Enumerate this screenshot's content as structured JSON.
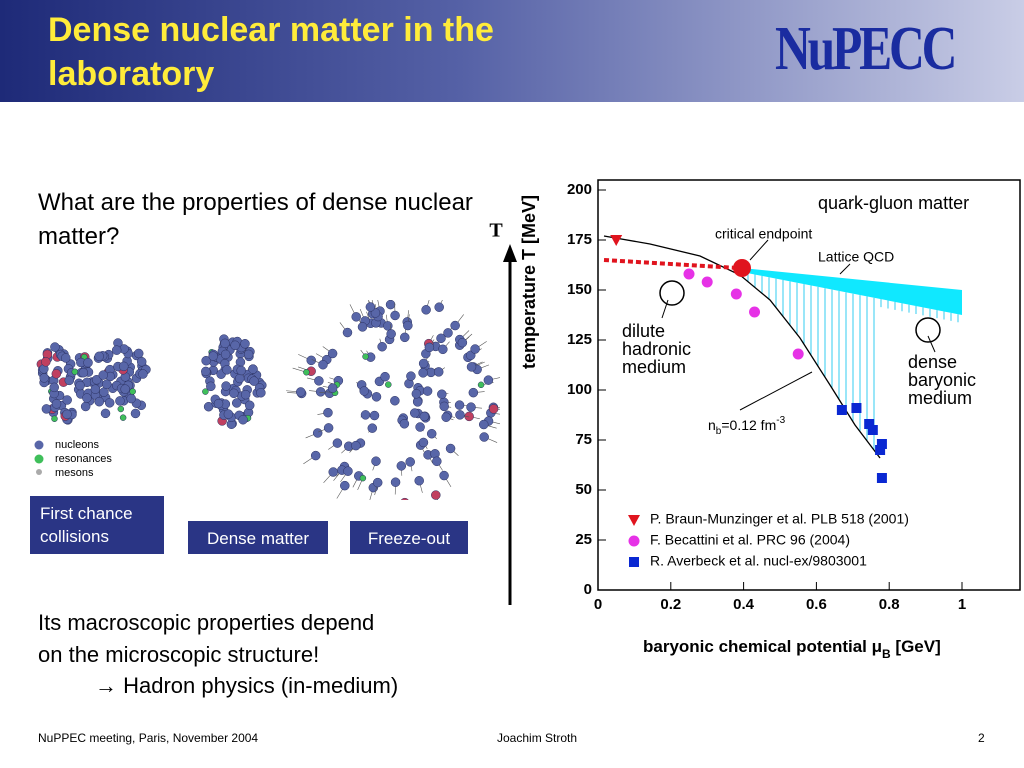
{
  "header": {
    "title": "Dense nuclear matter in the laboratory",
    "logo": "NuPECC"
  },
  "question": "What are the properties of dense nuclear matter?",
  "legend": [
    "nucleons",
    "resonances",
    "mesons"
  ],
  "stages": [
    "First chance collisions",
    "Dense matter",
    "Freeze-out"
  ],
  "t_axis": "T",
  "body": [
    "Its macroscopic properties depend",
    "on the microscopic structure!",
    "→ Hadron physics (in-medium)"
  ],
  "footer": {
    "left": "NuPPEC meeting, Paris, November  2004",
    "center": "Joachim Stroth",
    "right": "2"
  },
  "chart_data": {
    "type": "scatter",
    "y_label": "temperature T [MeV]",
    "x_label": [
      "baryonic chemical potential μ",
      "B",
      " [GeV]"
    ],
    "annotations": {
      "qgp": "quark-gluon matter",
      "endpoint": "critical endpoint",
      "lattice": "Lattice QCD",
      "dilute": [
        "dilute",
        "hadronic",
        "medium"
      ],
      "dense": [
        "dense",
        "baryonic",
        "medium"
      ],
      "density": [
        "n",
        "b",
        "=0.12 fm",
        "-3"
      ]
    },
    "xlim": [
      0,
      1.16
    ],
    "ylim": [
      0,
      205
    ],
    "xticks": [
      0,
      0.2,
      0.4,
      0.6,
      0.8,
      1
    ],
    "yticks": [
      0,
      25,
      50,
      75,
      100,
      125,
      150,
      175,
      200
    ],
    "series": [
      {
        "name": "P. Braun-Munzinger et al. PLB 518 (2001)",
        "color": "#e0141e",
        "marker": "triangle-down",
        "x": [
          0.05
        ],
        "values": [
          175
        ]
      },
      {
        "name": "F. Becattini et al. PRC 96 (2004)",
        "color": "#e632e6",
        "marker": "circle",
        "x": [
          0.25,
          0.3,
          0.38,
          0.43,
          0.55
        ],
        "values": [
          158,
          154,
          148,
          139,
          118
        ]
      },
      {
        "name": "R. Averbeck et al. nucl-ex/9803001",
        "color": "#0a28d2",
        "marker": "square",
        "x": [
          0.67,
          0.71,
          0.745,
          0.755,
          0.78,
          0.775,
          0.78
        ],
        "values": [
          90,
          91,
          83,
          80,
          73,
          70,
          56
        ]
      }
    ]
  }
}
